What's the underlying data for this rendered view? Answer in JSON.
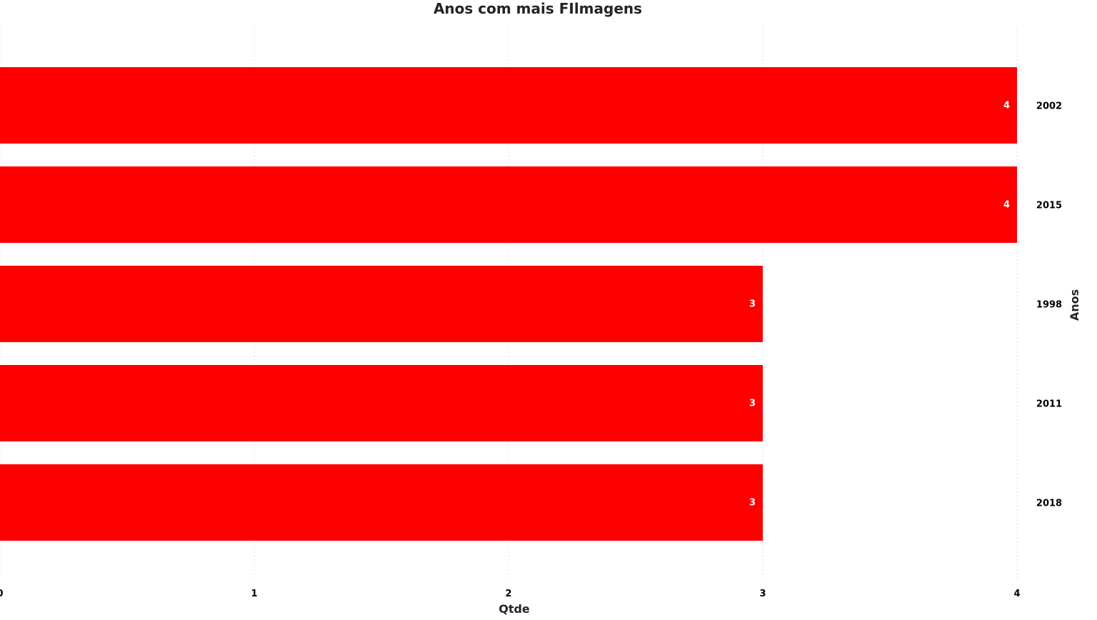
{
  "chart_data": {
    "type": "bar",
    "orientation": "horizontal",
    "title": "Anos com mais FIlmagens",
    "xlabel": "Qtde",
    "ylabel": "Anos",
    "categories": [
      "2002",
      "2015",
      "1998",
      "2011",
      "2018"
    ],
    "values": [
      4,
      4,
      3,
      3,
      3
    ],
    "xlim": [
      0,
      4
    ],
    "x_ticks": [
      "0",
      "1",
      "2",
      "3",
      "4"
    ],
    "grid": true,
    "category_axis_side": "right",
    "data_labels": true,
    "colors": {
      "bar": "#ff0000",
      "data_label": "#ffffff",
      "text": "#000000"
    }
  }
}
